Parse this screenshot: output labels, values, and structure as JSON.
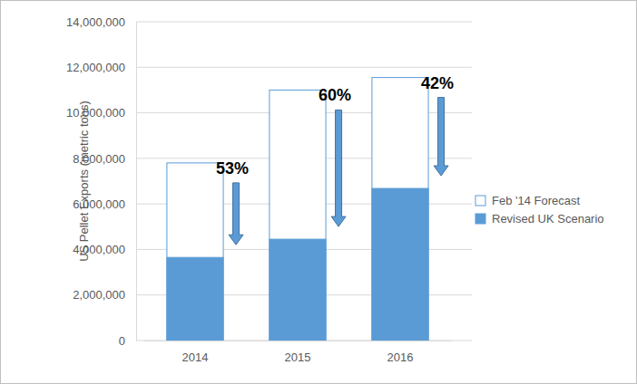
{
  "chart_data": {
    "type": "bar",
    "stacked": false,
    "y_label": "US Pellet Exports (metric tons)",
    "categories": [
      "2014",
      "2015",
      "2016"
    ],
    "series": [
      {
        "name": "Feb '14 Forecast",
        "color": "#ffffff",
        "values": [
          7800000,
          11000000,
          11550000
        ]
      },
      {
        "name": "Revised UK Scenario",
        "color": "#5b9bd5",
        "values": [
          3650000,
          4450000,
          6680000
        ]
      }
    ],
    "annotations": [
      "53%",
      "60%",
      "42%"
    ],
    "ylim": [
      0,
      14000000
    ],
    "yticks": [
      0,
      {
        "value": 2000000,
        "label": "2,000,000"
      },
      {
        "value": 4000000,
        "label": "4,000,000"
      },
      {
        "value": 6000000,
        "label": "6,000,000"
      },
      {
        "value": 8000000,
        "label": "8,000,000"
      },
      {
        "value": 10000000,
        "label": "10,000,000"
      },
      {
        "value": 12000000,
        "label": "12,000,000"
      },
      {
        "value": 14000000,
        "label": "14,000,000"
      }
    ],
    "grid": true,
    "legend": "right"
  }
}
